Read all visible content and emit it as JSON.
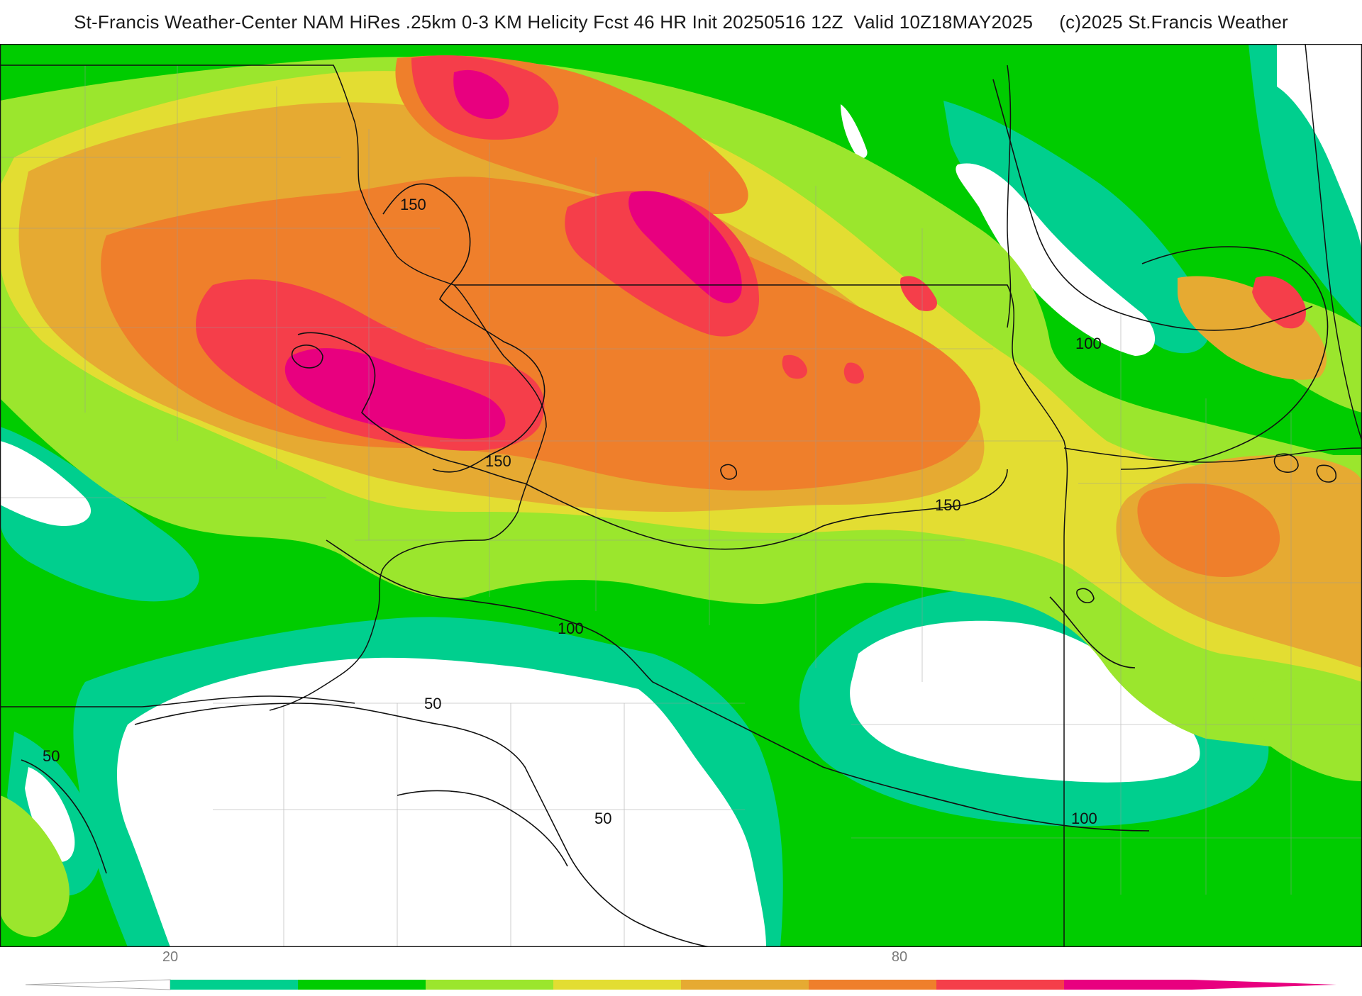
{
  "header": {
    "title": "St-Francis Weather-Center NAM HiRes .25km 0-3 KM Helicity Fcst 46 HR Init 20250516 12Z  Valid 10Z18MAY2025     (c)2025 St.Francis Weather"
  },
  "map": {
    "contour_labels": [
      "150",
      "150",
      "150",
      "100",
      "100",
      "100",
      "50",
      "50",
      "50"
    ]
  },
  "colorbar": {
    "tick_labels": [
      "20",
      "80"
    ],
    "colors": [
      "#00cf8e",
      "#00cc00",
      "#9be62d",
      "#e3dd32",
      "#e6aa32",
      "#ef7f2b",
      "#f53e4a",
      "#e8007f"
    ]
  }
}
